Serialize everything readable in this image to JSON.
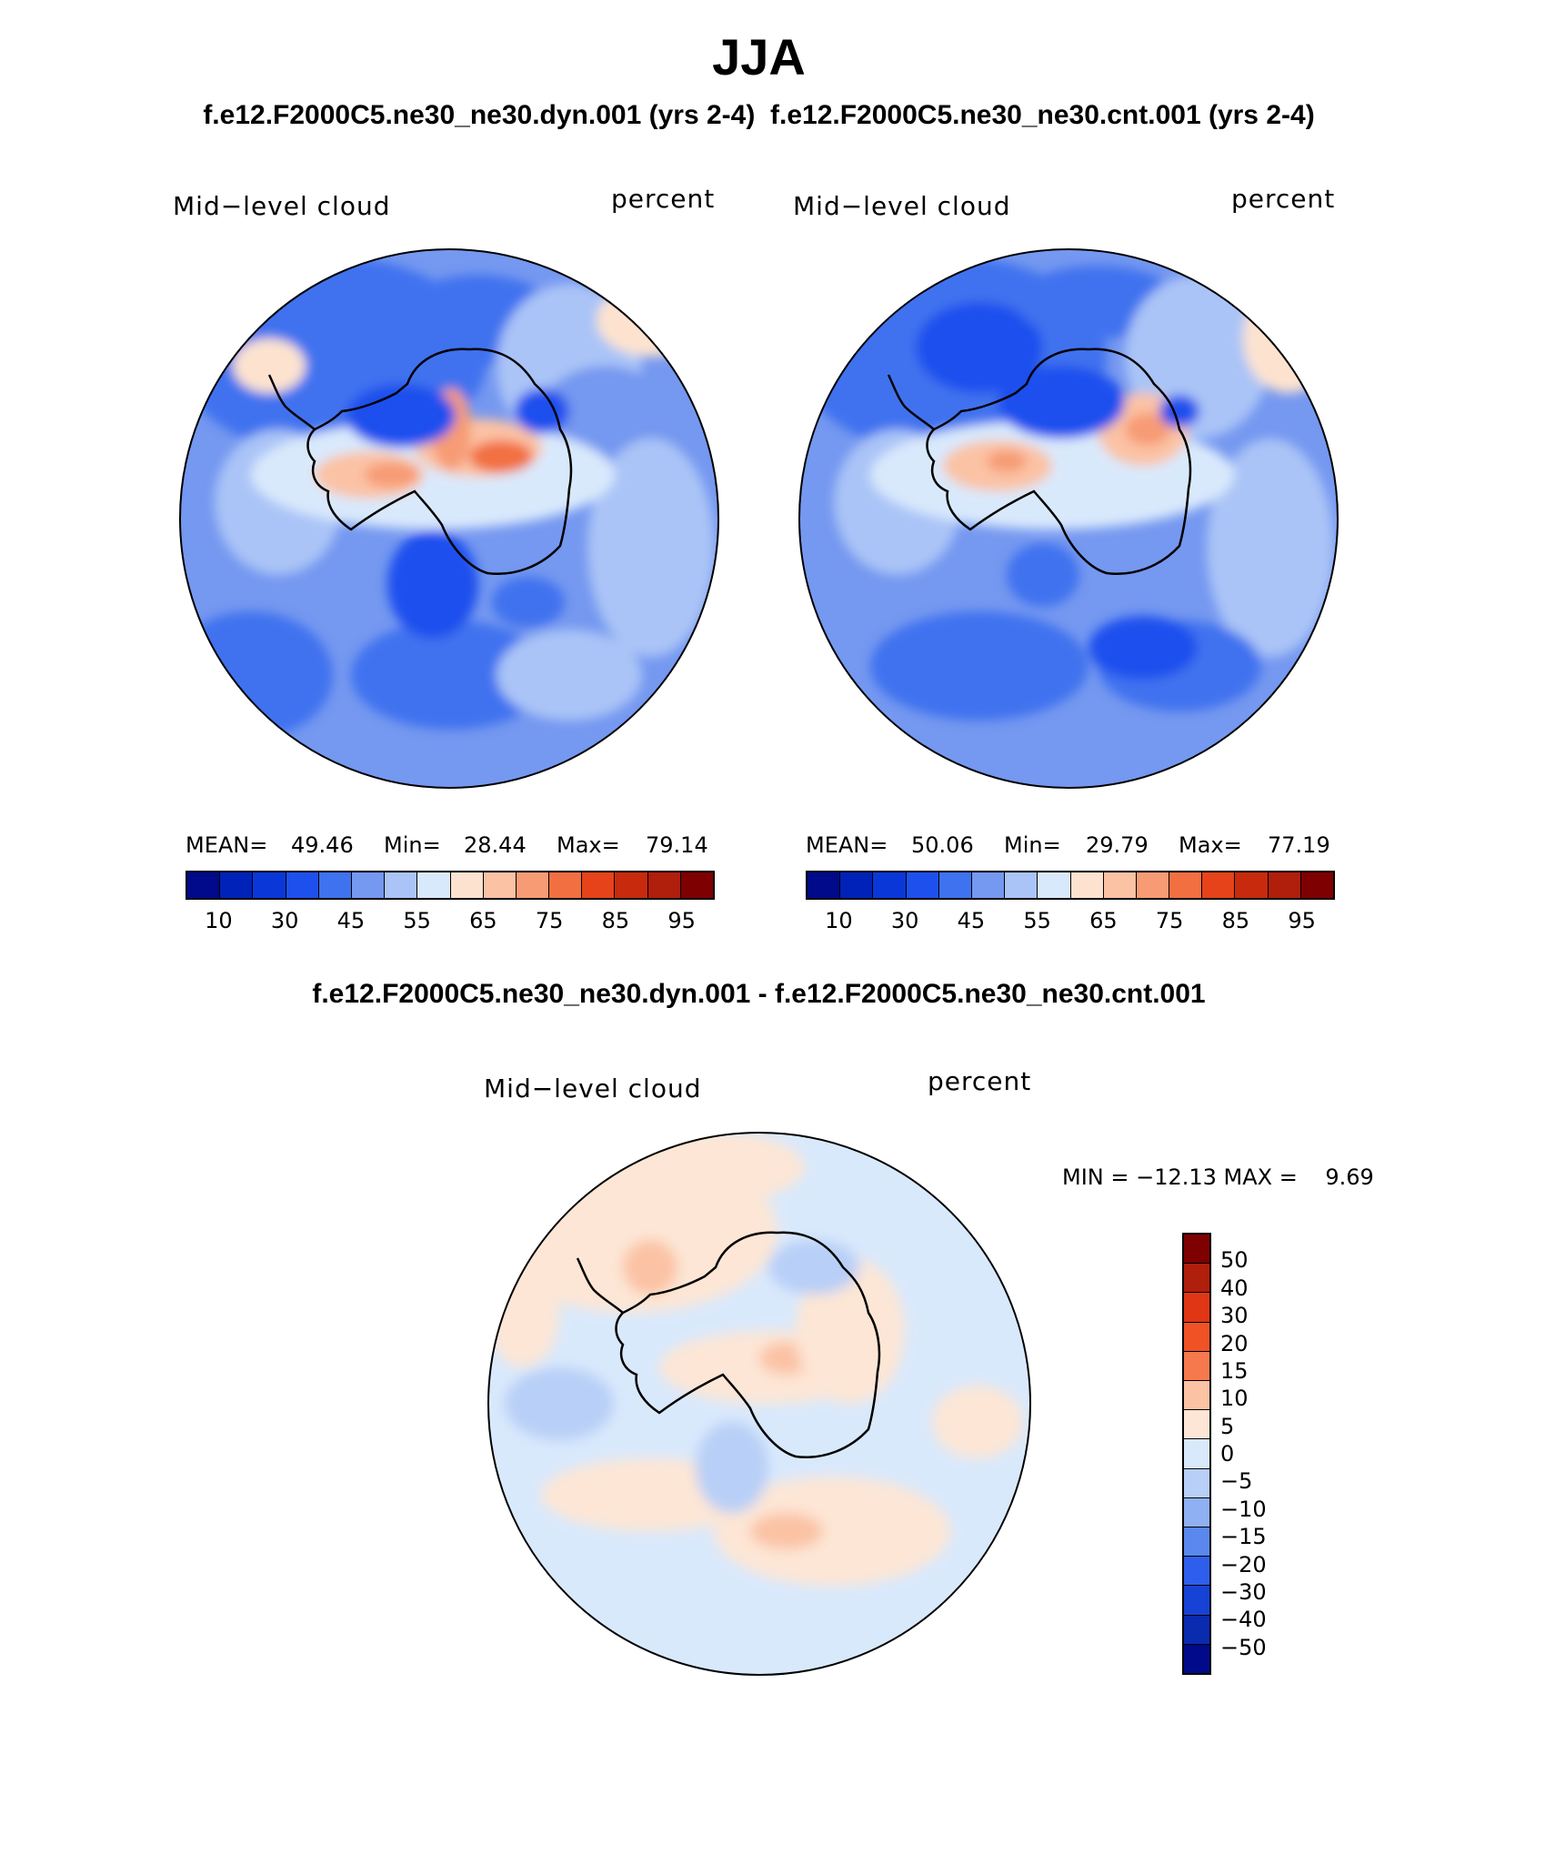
{
  "title": "JJA",
  "case_titles": "f.e12.F2000C5.ne30_ne30.dyn.001 (yrs 2-4)  f.e12.F2000C5.ne30_ne30.cnt.001 (yrs 2-4)",
  "diff_title": "f.e12.F2000C5.ne30_ne30.dyn.001 - f.e12.F2000C5.ne30_ne30.cnt.001",
  "panels": [
    {
      "variable": "Mid−level cloud",
      "units": "percent",
      "mean_label": "MEAN=",
      "mean": "49.46",
      "min_label": "Min=",
      "min": "28.44",
      "max_label": "Max=",
      "max": "79.14"
    },
    {
      "variable": "Mid−level cloud",
      "units": "percent",
      "mean_label": "MEAN=",
      "mean": "50.06",
      "min_label": "Min=",
      "min": "29.79",
      "max_label": "Max=",
      "max": "77.19"
    }
  ],
  "diff_panel": {
    "variable": "Mid−level cloud",
    "units": "percent",
    "minmax": "MIN = −12.13 MAX =    9.69"
  },
  "colorbar": {
    "ticks": [
      "10",
      "30",
      "45",
      "55",
      "65",
      "75",
      "85",
      "95"
    ],
    "colors": [
      "#000a8a",
      "#0022b8",
      "#0a38d8",
      "#1e50ee",
      "#3f72ef",
      "#7598f0",
      "#aac4f7",
      "#d9e9fc",
      "#fde3cf",
      "#fbc2a4",
      "#f79b75",
      "#f26f42",
      "#e6431a",
      "#c72a0c",
      "#b01e0c",
      "#7e0000"
    ]
  },
  "diff_colorbar": {
    "ticks": [
      "50",
      "40",
      "30",
      "20",
      "15",
      "10",
      "5",
      "0",
      "−5",
      "−10",
      "−15",
      "−20",
      "−30",
      "−40",
      "−50"
    ],
    "colors": [
      "#7e0000",
      "#b01e0c",
      "#e03616",
      "#f05226",
      "#f6794d",
      "#fbc2a4",
      "#fde6d5",
      "#d9e9fc",
      "#b8cff7",
      "#8fb0f2",
      "#5a88ee",
      "#2e5fec",
      "#1642d6",
      "#0a2ab0",
      "#000a8a"
    ]
  },
  "map_colors": {
    "ocean_blue": "#aac4f7",
    "deep_blue": "#3f72ef",
    "darker_blue": "#1e50ee",
    "light_blue": "#d9e9fc",
    "peach": "#fde3cf",
    "salmon": "#fbc2a4",
    "orange": "#f26f42",
    "coast": "#000000"
  }
}
